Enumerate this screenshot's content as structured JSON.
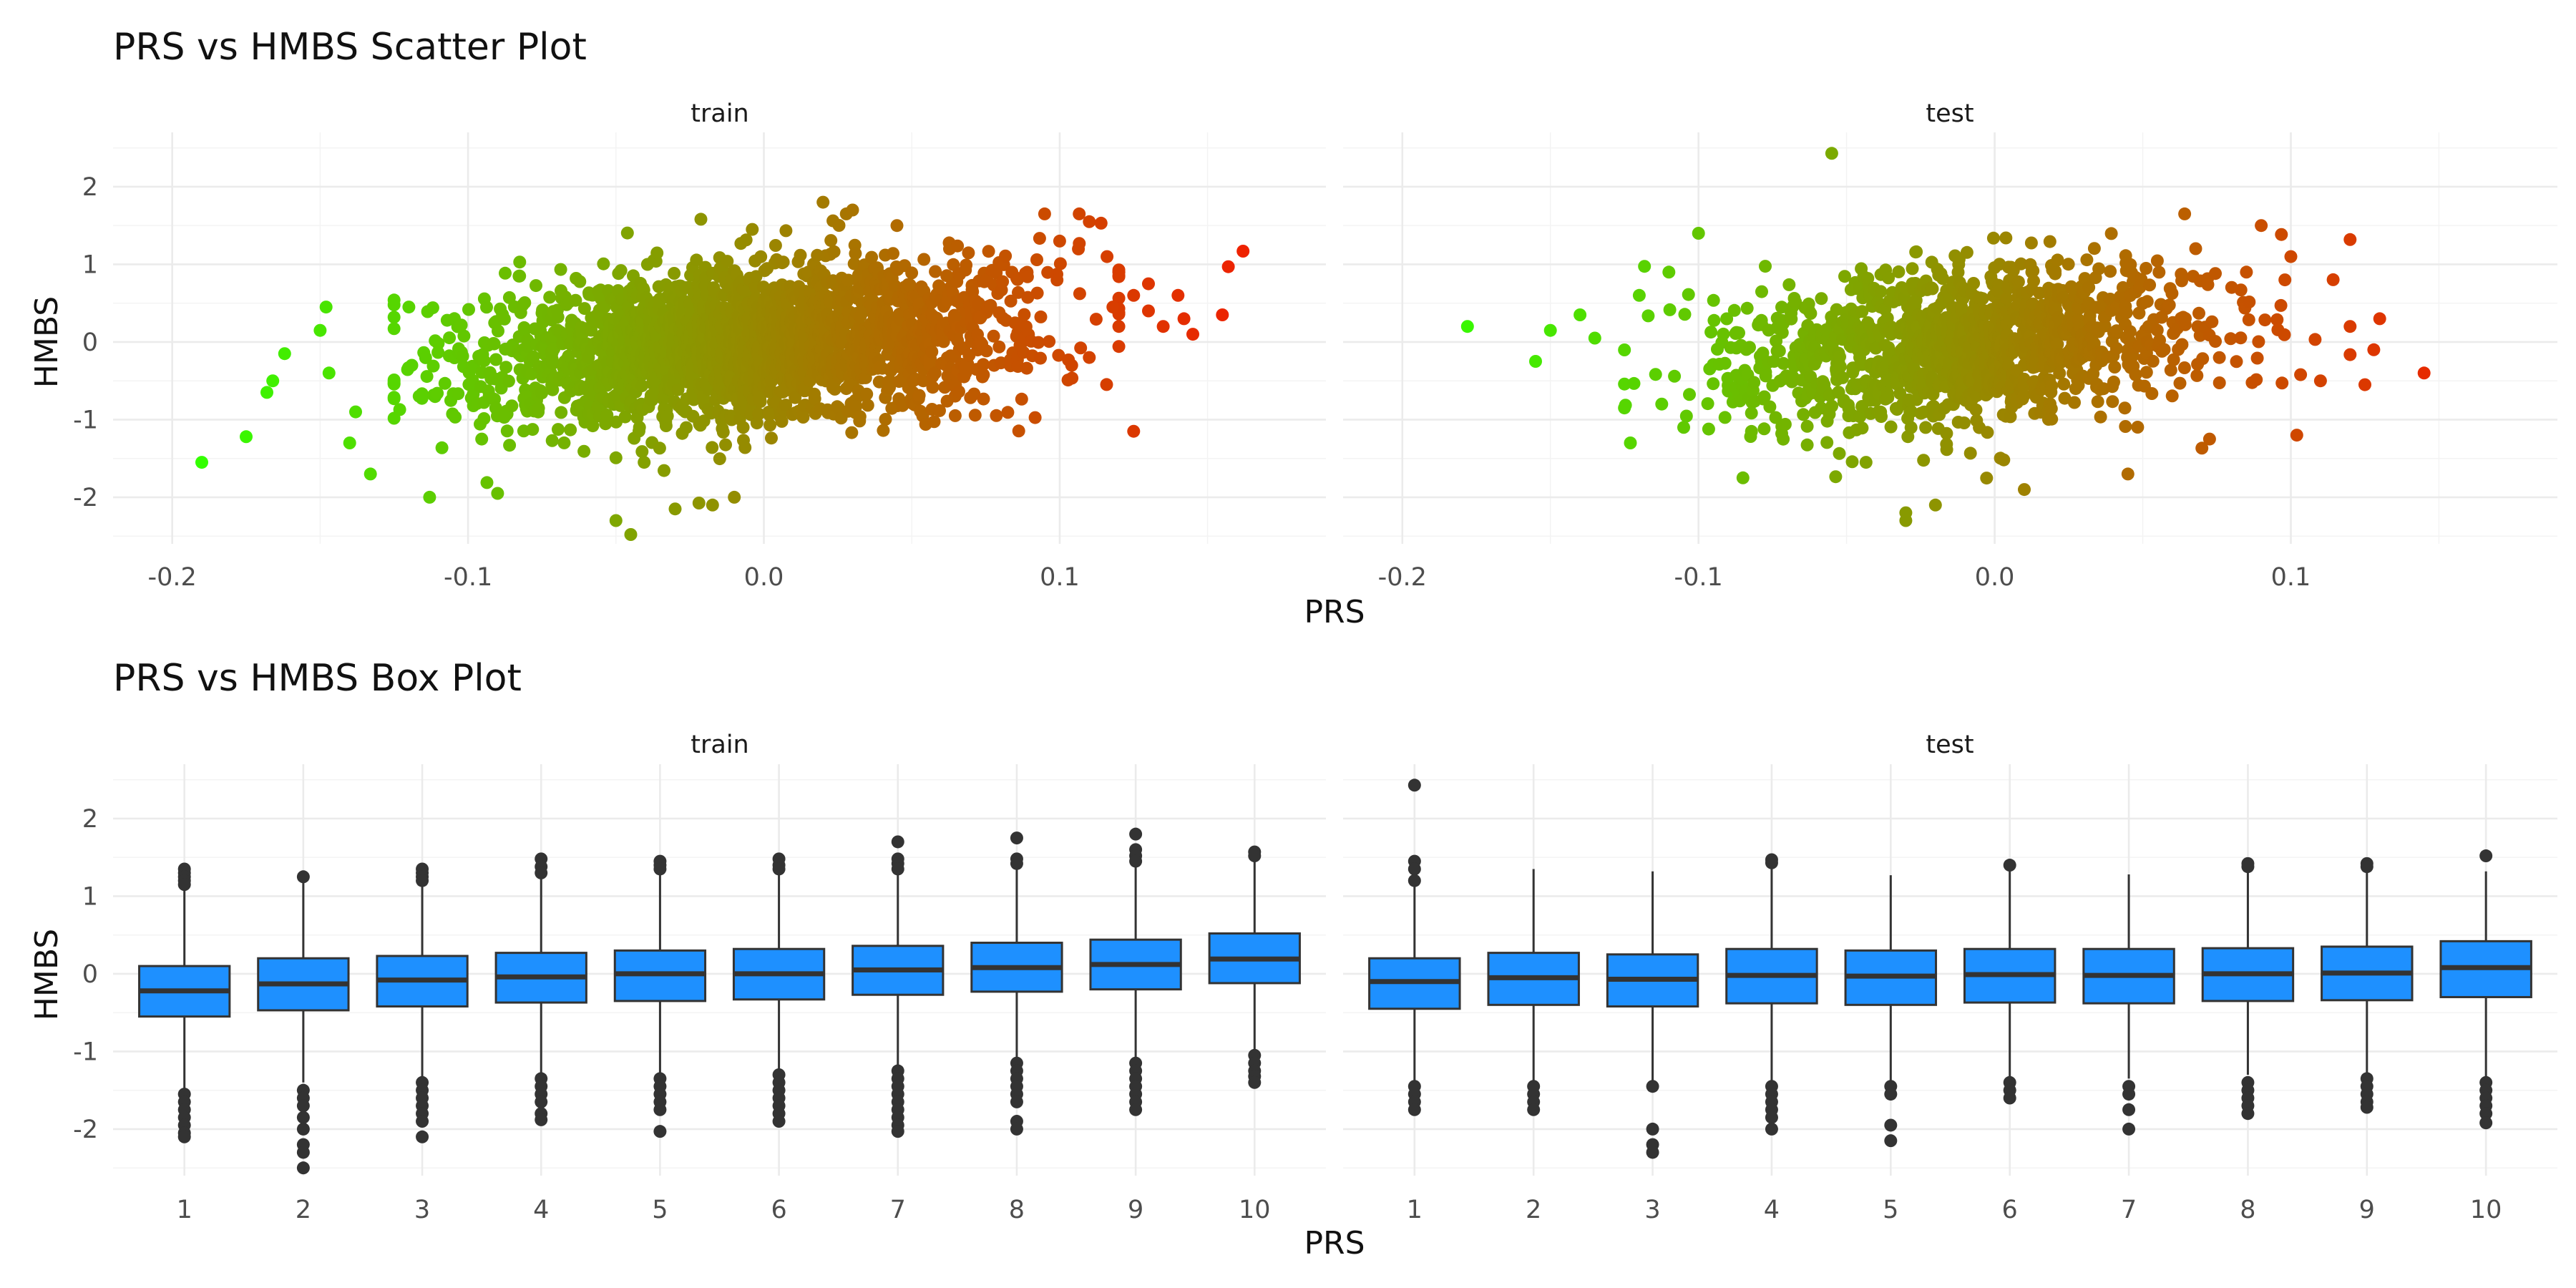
{
  "chart_data": [
    {
      "type": "scatter",
      "title": "PRS vs HMBS Scatter Plot",
      "xlabel": "PRS",
      "ylabel": "HMBS",
      "xlim": [
        -0.22,
        0.19
      ],
      "ylim": [
        -2.6,
        2.7
      ],
      "x_ticks": [
        "-0.2",
        "-0.1",
        "0.0",
        "0.1"
      ],
      "x_tick_values": [
        -0.2,
        -0.1,
        0.0,
        0.1
      ],
      "y_ticks": [
        "2",
        "1",
        "0",
        "-1",
        "-2"
      ],
      "y_tick_values": [
        2,
        1,
        0,
        -1,
        -2
      ],
      "color_scale": {
        "low": "#33ff00",
        "high": "#ee2200",
        "mapped_to": "PRS"
      },
      "facets": [
        "train",
        "test"
      ],
      "series": [
        {
          "facet": "train",
          "trend": {
            "x_mean": -0.005,
            "x_sd": 0.045,
            "slope": 3.3,
            "intercept": 0.0,
            "residual_sd": 0.5,
            "n_approx": 2400
          },
          "values": [
            {
              "x": -0.19,
              "y": -1.55
            },
            {
              "x": -0.175,
              "y": -1.22
            },
            {
              "x": -0.168,
              "y": -0.65
            },
            {
              "x": -0.166,
              "y": -0.5
            },
            {
              "x": -0.162,
              "y": -0.15
            },
            {
              "x": -0.148,
              "y": 0.45
            },
            {
              "x": -0.15,
              "y": 0.15
            },
            {
              "x": -0.147,
              "y": -0.4
            },
            {
              "x": -0.138,
              "y": -0.9
            },
            {
              "x": -0.14,
              "y": -1.3
            },
            {
              "x": -0.133,
              "y": -1.7
            },
            {
              "x": -0.12,
              "y": 0.45
            },
            {
              "x": -0.113,
              "y": -2.0
            },
            {
              "x": -0.09,
              "y": -1.95
            },
            {
              "x": -0.045,
              "y": -2.48
            },
            {
              "x": -0.05,
              "y": -2.3
            },
            {
              "x": -0.03,
              "y": -2.15
            },
            {
              "x": -0.01,
              "y": -2.0
            },
            {
              "x": 0.02,
              "y": 1.8
            },
            {
              "x": 0.03,
              "y": 1.7
            },
            {
              "x": 0.045,
              "y": 1.5
            },
            {
              "x": 0.1,
              "y": 1.3
            },
            {
              "x": 0.11,
              "y": 1.55
            },
            {
              "x": 0.114,
              "y": 1.53
            },
            {
              "x": 0.116,
              "y": 1.1
            },
            {
              "x": 0.12,
              "y": 0.9
            },
            {
              "x": 0.125,
              "y": 0.6
            },
            {
              "x": 0.13,
              "y": 0.4
            },
            {
              "x": 0.135,
              "y": 0.2
            },
            {
              "x": 0.14,
              "y": 0.6
            },
            {
              "x": 0.142,
              "y": 0.3
            },
            {
              "x": 0.145,
              "y": 0.1
            },
            {
              "x": 0.155,
              "y": 0.35
            },
            {
              "x": 0.157,
              "y": 0.97
            },
            {
              "x": 0.162,
              "y": 1.17
            },
            {
              "x": 0.125,
              "y": -1.15
            },
            {
              "x": 0.11,
              "y": -0.2
            },
            {
              "x": 0.12,
              "y": 0.2
            },
            {
              "x": 0.13,
              "y": 0.75
            },
            {
              "x": 0.118,
              "y": 0.45
            }
          ]
        },
        {
          "facet": "test",
          "trend": {
            "x_mean": -0.01,
            "x_sd": 0.04,
            "slope": 3.0,
            "intercept": 0.0,
            "residual_sd": 0.5,
            "n_approx": 1300
          },
          "values": [
            {
              "x": -0.178,
              "y": 0.2
            },
            {
              "x": -0.155,
              "y": -0.25
            },
            {
              "x": -0.15,
              "y": 0.15
            },
            {
              "x": -0.14,
              "y": 0.35
            },
            {
              "x": -0.135,
              "y": 0.05
            },
            {
              "x": -0.125,
              "y": -0.85
            },
            {
              "x": -0.123,
              "y": -1.3
            },
            {
              "x": -0.12,
              "y": 0.6
            },
            {
              "x": -0.11,
              "y": 0.9
            },
            {
              "x": -0.1,
              "y": 1.4
            },
            {
              "x": -0.105,
              "y": -1.1
            },
            {
              "x": -0.085,
              "y": -1.75
            },
            {
              "x": -0.055,
              "y": 2.43
            },
            {
              "x": -0.03,
              "y": -2.3
            },
            {
              "x": -0.03,
              "y": -2.2
            },
            {
              "x": -0.02,
              "y": -2.1
            },
            {
              "x": 0.01,
              "y": -1.9
            },
            {
              "x": 0.045,
              "y": -1.7
            },
            {
              "x": 0.1,
              "y": 1.1
            },
            {
              "x": 0.098,
              "y": 0.8
            },
            {
              "x": 0.11,
              "y": -0.5
            },
            {
              "x": 0.12,
              "y": 0.2
            },
            {
              "x": 0.125,
              "y": -0.55
            },
            {
              "x": 0.13,
              "y": 0.3
            },
            {
              "x": 0.145,
              "y": -0.4
            },
            {
              "x": 0.128,
              "y": -0.1
            },
            {
              "x": 0.102,
              "y": -1.2
            },
            {
              "x": 0.09,
              "y": 1.5
            },
            {
              "x": 0.085,
              "y": 0.9
            }
          ]
        }
      ]
    },
    {
      "type": "box",
      "title": "PRS vs HMBS Box Plot",
      "xlabel": "PRS",
      "ylabel": "HMBS",
      "ylim": [
        -2.6,
        2.7
      ],
      "categories": [
        "1",
        "2",
        "3",
        "4",
        "5",
        "6",
        "7",
        "8",
        "9",
        "10"
      ],
      "y_ticks": [
        "2",
        "1",
        "0",
        "-1",
        "-2"
      ],
      "y_tick_values": [
        2,
        1,
        0,
        -1,
        -2
      ],
      "fill": "#1e90ff",
      "facets": [
        "train",
        "test"
      ],
      "series": [
        {
          "facet": "train",
          "boxes": [
            {
              "q1": -0.55,
              "median": -0.22,
              "q3": 0.1,
              "whisker_low": -1.5,
              "whisker_high": 1.1,
              "outliers": [
                1.35,
                1.3,
                1.25,
                1.2,
                1.15,
                -1.55,
                -1.65,
                -1.75,
                -1.85,
                -1.95,
                -2.05,
                -2.1
              ]
            },
            {
              "q1": -0.47,
              "median": -0.13,
              "q3": 0.2,
              "whisker_low": -1.4,
              "whisker_high": 1.2,
              "outliers": [
                1.25,
                -1.5,
                -1.6,
                -1.7,
                -1.85,
                -2.0,
                -2.2,
                -2.3,
                -2.5
              ]
            },
            {
              "q1": -0.42,
              "median": -0.08,
              "q3": 0.23,
              "whisker_low": -1.35,
              "whisker_high": 1.15,
              "outliers": [
                1.35,
                1.3,
                1.25,
                1.2,
                -1.4,
                -1.5,
                -1.6,
                -1.7,
                -1.8,
                -1.9,
                -2.1
              ]
            },
            {
              "q1": -0.37,
              "median": -0.04,
              "q3": 0.27,
              "whisker_low": -1.3,
              "whisker_high": 1.25,
              "outliers": [
                1.48,
                1.38,
                1.3,
                -1.35,
                -1.45,
                -1.55,
                -1.65,
                -1.8,
                -1.88
              ]
            },
            {
              "q1": -0.35,
              "median": 0.0,
              "q3": 0.3,
              "whisker_low": -1.3,
              "whisker_high": 1.3,
              "outliers": [
                1.45,
                1.4,
                1.35,
                -1.35,
                -1.45,
                -1.55,
                -1.65,
                -1.75,
                -2.03
              ]
            },
            {
              "q1": -0.33,
              "median": 0.0,
              "q3": 0.32,
              "whisker_low": -1.3,
              "whisker_high": 1.3,
              "outliers": [
                1.48,
                1.4,
                1.35,
                -1.3,
                -1.4,
                -1.5,
                -1.6,
                -1.7,
                -1.8,
                -1.9
              ]
            },
            {
              "q1": -0.27,
              "median": 0.05,
              "q3": 0.36,
              "whisker_low": -1.2,
              "whisker_high": 1.3,
              "outliers": [
                1.7,
                1.48,
                1.42,
                1.35,
                -1.25,
                -1.35,
                -1.45,
                -1.55,
                -1.65,
                -1.75,
                -1.85,
                -1.95,
                -2.03
              ]
            },
            {
              "q1": -0.23,
              "median": 0.08,
              "q3": 0.4,
              "whisker_low": -1.1,
              "whisker_high": 1.35,
              "outliers": [
                1.75,
                1.48,
                1.42,
                -1.15,
                -1.25,
                -1.35,
                -1.45,
                -1.55,
                -1.65,
                -1.9,
                -2.0
              ]
            },
            {
              "q1": -0.2,
              "median": 0.12,
              "q3": 0.44,
              "whisker_low": -1.1,
              "whisker_high": 1.4,
              "outliers": [
                1.8,
                1.6,
                1.52,
                1.45,
                -1.15,
                -1.25,
                -1.35,
                -1.45,
                -1.55,
                -1.65,
                -1.75
              ]
            },
            {
              "q1": -0.12,
              "median": 0.19,
              "q3": 0.52,
              "whisker_low": -1.0,
              "whisker_high": 1.45,
              "outliers": [
                1.57,
                1.52,
                -1.05,
                -1.15,
                -1.25,
                -1.32,
                -1.4
              ]
            }
          ]
        },
        {
          "facet": "test",
          "boxes": [
            {
              "q1": -0.45,
              "median": -0.1,
              "q3": 0.2,
              "whisker_low": -1.4,
              "whisker_high": 1.15,
              "outliers": [
                2.43,
                1.45,
                1.35,
                1.2,
                -1.45,
                -1.55,
                -1.65,
                -1.75
              ]
            },
            {
              "q1": -0.4,
              "median": -0.05,
              "q3": 0.27,
              "whisker_low": -1.4,
              "whisker_high": 1.35,
              "outliers": [
                -1.45,
                -1.55,
                -1.65,
                -1.75
              ]
            },
            {
              "q1": -0.42,
              "median": -0.07,
              "q3": 0.25,
              "whisker_low": -1.4,
              "whisker_high": 1.32,
              "outliers": [
                -1.45,
                -2.0,
                -2.2,
                -2.3
              ]
            },
            {
              "q1": -0.38,
              "median": -0.02,
              "q3": 0.32,
              "whisker_low": -1.4,
              "whisker_high": 1.38,
              "outliers": [
                1.47,
                1.43,
                -1.45,
                -1.55,
                -1.65,
                -1.75,
                -1.85,
                -2.0
              ]
            },
            {
              "q1": -0.4,
              "median": -0.03,
              "q3": 0.3,
              "whisker_low": -1.4,
              "whisker_high": 1.27,
              "outliers": [
                -1.45,
                -1.55,
                -1.95,
                -2.15
              ]
            },
            {
              "q1": -0.37,
              "median": -0.01,
              "q3": 0.32,
              "whisker_low": -1.35,
              "whisker_high": 1.35,
              "outliers": [
                1.4,
                -1.4,
                -1.5,
                -1.6
              ]
            },
            {
              "q1": -0.38,
              "median": -0.02,
              "q3": 0.32,
              "whisker_low": -1.35,
              "whisker_high": 1.28,
              "outliers": [
                -1.45,
                -1.55,
                -1.75,
                -2.0
              ]
            },
            {
              "q1": -0.35,
              "median": 0.0,
              "q3": 0.33,
              "whisker_low": -1.3,
              "whisker_high": 1.35,
              "outliers": [
                1.42,
                1.38,
                -1.4,
                -1.5,
                -1.6,
                -1.7,
                -1.8
              ]
            },
            {
              "q1": -0.34,
              "median": 0.01,
              "q3": 0.35,
              "whisker_low": -1.3,
              "whisker_high": 1.35,
              "outliers": [
                1.42,
                1.38,
                -1.35,
                -1.45,
                -1.55,
                -1.65,
                -1.72
              ]
            },
            {
              "q1": -0.3,
              "median": 0.08,
              "q3": 0.42,
              "whisker_low": -1.35,
              "whisker_high": 1.32,
              "outliers": [
                1.52,
                -1.4,
                -1.5,
                -1.6,
                -1.7,
                -1.8,
                -1.92
              ]
            }
          ]
        }
      ]
    }
  ]
}
